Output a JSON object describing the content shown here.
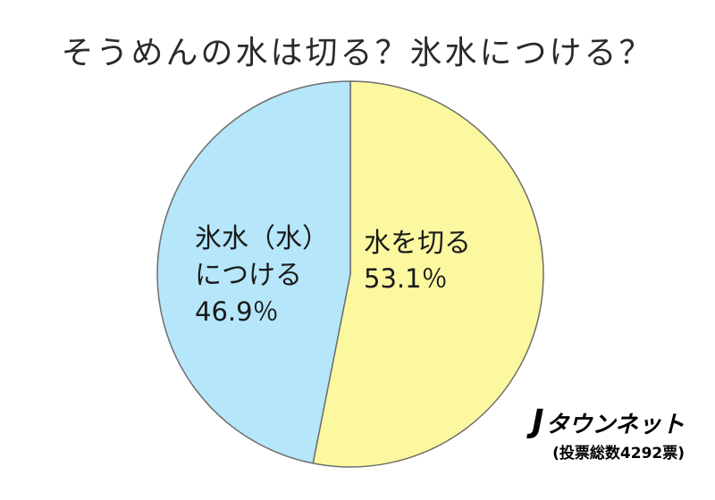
{
  "chart_data": {
    "type": "pie",
    "title": "そうめんの水は切る？氷水につける？",
    "slices": [
      {
        "label_lines": [
          "水を切る"
        ],
        "value": 53.1,
        "value_text": "53.1％",
        "color": "#fbf8a0"
      },
      {
        "label_lines": [
          "氷水（水）",
          "につける"
        ],
        "value": 46.9,
        "value_text": "46.9％",
        "color": "#b5e6f9"
      }
    ],
    "legend": "none",
    "stroke_color": "#6e6e6e"
  },
  "brand": {
    "logo_initial": "J",
    "logo_rest": "タウンネット",
    "note": "(投票総数4292票)"
  }
}
